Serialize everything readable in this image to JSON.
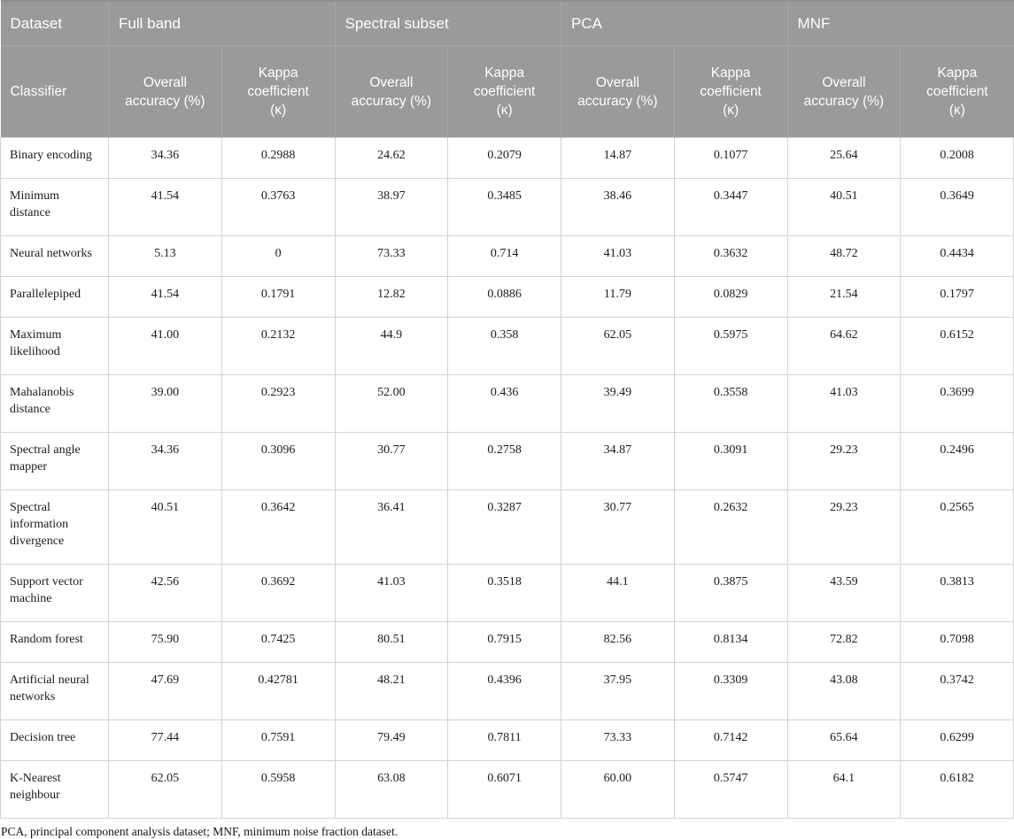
{
  "chart_data": {
    "type": "table",
    "header_row1": {
      "dataset_label": "Dataset",
      "groups": [
        {
          "label": "Full band"
        },
        {
          "label": "Spectral subset"
        },
        {
          "label": "PCA"
        },
        {
          "label": "MNF"
        }
      ]
    },
    "header_row2": {
      "classifier_label": "Classifier",
      "metric_labels": [
        "Overall accuracy (%)",
        "Kappa coefficient (κ)"
      ]
    },
    "rows": [
      {
        "classifier": "Binary encoding",
        "values": [
          "34.36",
          "0.2988",
          "24.62",
          "0.2079",
          "14.87",
          "0.1077",
          "25.64",
          "0.2008"
        ]
      },
      {
        "classifier": "Minimum distance",
        "values": [
          "41.54",
          "0.3763",
          "38.97",
          "0.3485",
          "38.46",
          "0.3447",
          "40.51",
          "0.3649"
        ]
      },
      {
        "classifier": "Neural networks",
        "values": [
          "5.13",
          "0",
          "73.33",
          "0.714",
          "41.03",
          "0.3632",
          "48.72",
          "0.4434"
        ]
      },
      {
        "classifier": "Parallelepiped",
        "values": [
          "41.54",
          "0.1791",
          "12.82",
          "0.0886",
          "11.79",
          "0.0829",
          "21.54",
          "0.1797"
        ]
      },
      {
        "classifier": "Maximum likelihood",
        "values": [
          "41.00",
          "0.2132",
          "44.9",
          "0.358",
          "62.05",
          "0.5975",
          "64.62",
          "0.6152"
        ]
      },
      {
        "classifier": "Mahalanobis distance",
        "values": [
          "39.00",
          "0.2923",
          "52.00",
          "0.436",
          "39.49",
          "0.3558",
          "41.03",
          "0.3699"
        ]
      },
      {
        "classifier": "Spectral angle mapper",
        "values": [
          "34.36",
          "0.3096",
          "30.77",
          "0.2758",
          "34.87",
          "0.3091",
          "29.23",
          "0.2496"
        ]
      },
      {
        "classifier": "Spectral information divergence",
        "values": [
          "40.51",
          "0.3642",
          "36.41",
          "0.3287",
          "30.77",
          "0.2632",
          "29.23",
          "0.2565"
        ]
      },
      {
        "classifier": "Support vector machine",
        "values": [
          "42.56",
          "0.3692",
          "41.03",
          "0.3518",
          "44.1",
          "0.3875",
          "43.59",
          "0.3813"
        ]
      },
      {
        "classifier": "Random forest",
        "values": [
          "75.90",
          "0.7425",
          "80.51",
          "0.7915",
          "82.56",
          "0.8134",
          "72.82",
          "0.7098"
        ]
      },
      {
        "classifier": "Artificial neural networks",
        "values": [
          "47.69",
          "0.42781",
          "48.21",
          "0.4396",
          "37.95",
          "0.3309",
          "43.08",
          "0.3742"
        ]
      },
      {
        "classifier": "Decision tree",
        "values": [
          "77.44",
          "0.7591",
          "79.49",
          "0.7811",
          "73.33",
          "0.7142",
          "65.64",
          "0.6299"
        ]
      },
      {
        "classifier": "K-Nearest neighbour",
        "values": [
          "62.05",
          "0.5958",
          "63.08",
          "0.6071",
          "60.00",
          "0.5747",
          "64.1",
          "0.6182"
        ]
      }
    ],
    "footnote": "PCA, principal component analysis dataset; MNF, minimum noise fraction dataset."
  },
  "colors": {
    "header_bg": "#9b9999",
    "header_divider": "#a9a7a6",
    "header_text": "#ffffff",
    "body_border": "#d3d3d3",
    "body_text": "#1c1c1c",
    "body_bg": "#ffffff"
  }
}
